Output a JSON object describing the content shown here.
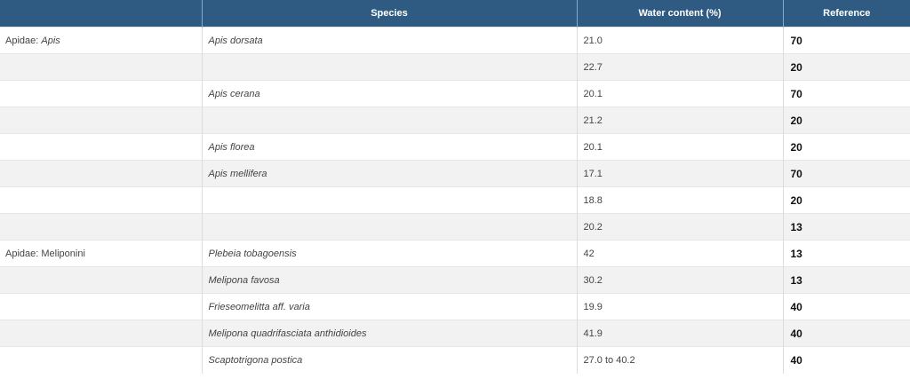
{
  "table": {
    "headers": [
      "",
      "Species",
      "Water content (%)",
      "Reference"
    ],
    "rows": [
      {
        "group": "Apidae: ",
        "group_italic": "Apis",
        "species": "Apis dorsata",
        "water": "21.0",
        "ref": "70"
      },
      {
        "group": "",
        "group_italic": "",
        "species": "",
        "water": "22.7",
        "ref": "20"
      },
      {
        "group": "",
        "group_italic": "",
        "species": "Apis cerana",
        "water": "20.1",
        "ref": "70"
      },
      {
        "group": "",
        "group_italic": "",
        "species": "",
        "water": "21.2",
        "ref": "20"
      },
      {
        "group": "",
        "group_italic": "",
        "species": "Apis florea",
        "water": "20.1",
        "ref": "20"
      },
      {
        "group": "",
        "group_italic": "",
        "species": "Apis mellifera",
        "water": "17.1",
        "ref": "70"
      },
      {
        "group": "",
        "group_italic": "",
        "species": "",
        "water": "18.8",
        "ref": "20"
      },
      {
        "group": "",
        "group_italic": "",
        "species": "",
        "water": "20.2",
        "ref": "13"
      },
      {
        "group": "Apidae: Meliponini",
        "group_italic": "",
        "species": "Plebeia tobagoensis",
        "water": "42",
        "ref": "13"
      },
      {
        "group": "",
        "group_italic": "",
        "species": "Melipona favosa",
        "water": "30.2",
        "ref": "13"
      },
      {
        "group": "",
        "group_italic": "",
        "species": "Frieseomelitta aff. varia",
        "water": "19.9",
        "ref": "40"
      },
      {
        "group": "",
        "group_italic": "",
        "species": "Melipona quadrifasciata anthidioides",
        "water": "41.9",
        "ref": "40"
      },
      {
        "group": "",
        "group_italic": "",
        "species": "Scaptotrigona postica",
        "water": "27.0 to 40.2",
        "ref": "40"
      }
    ]
  }
}
